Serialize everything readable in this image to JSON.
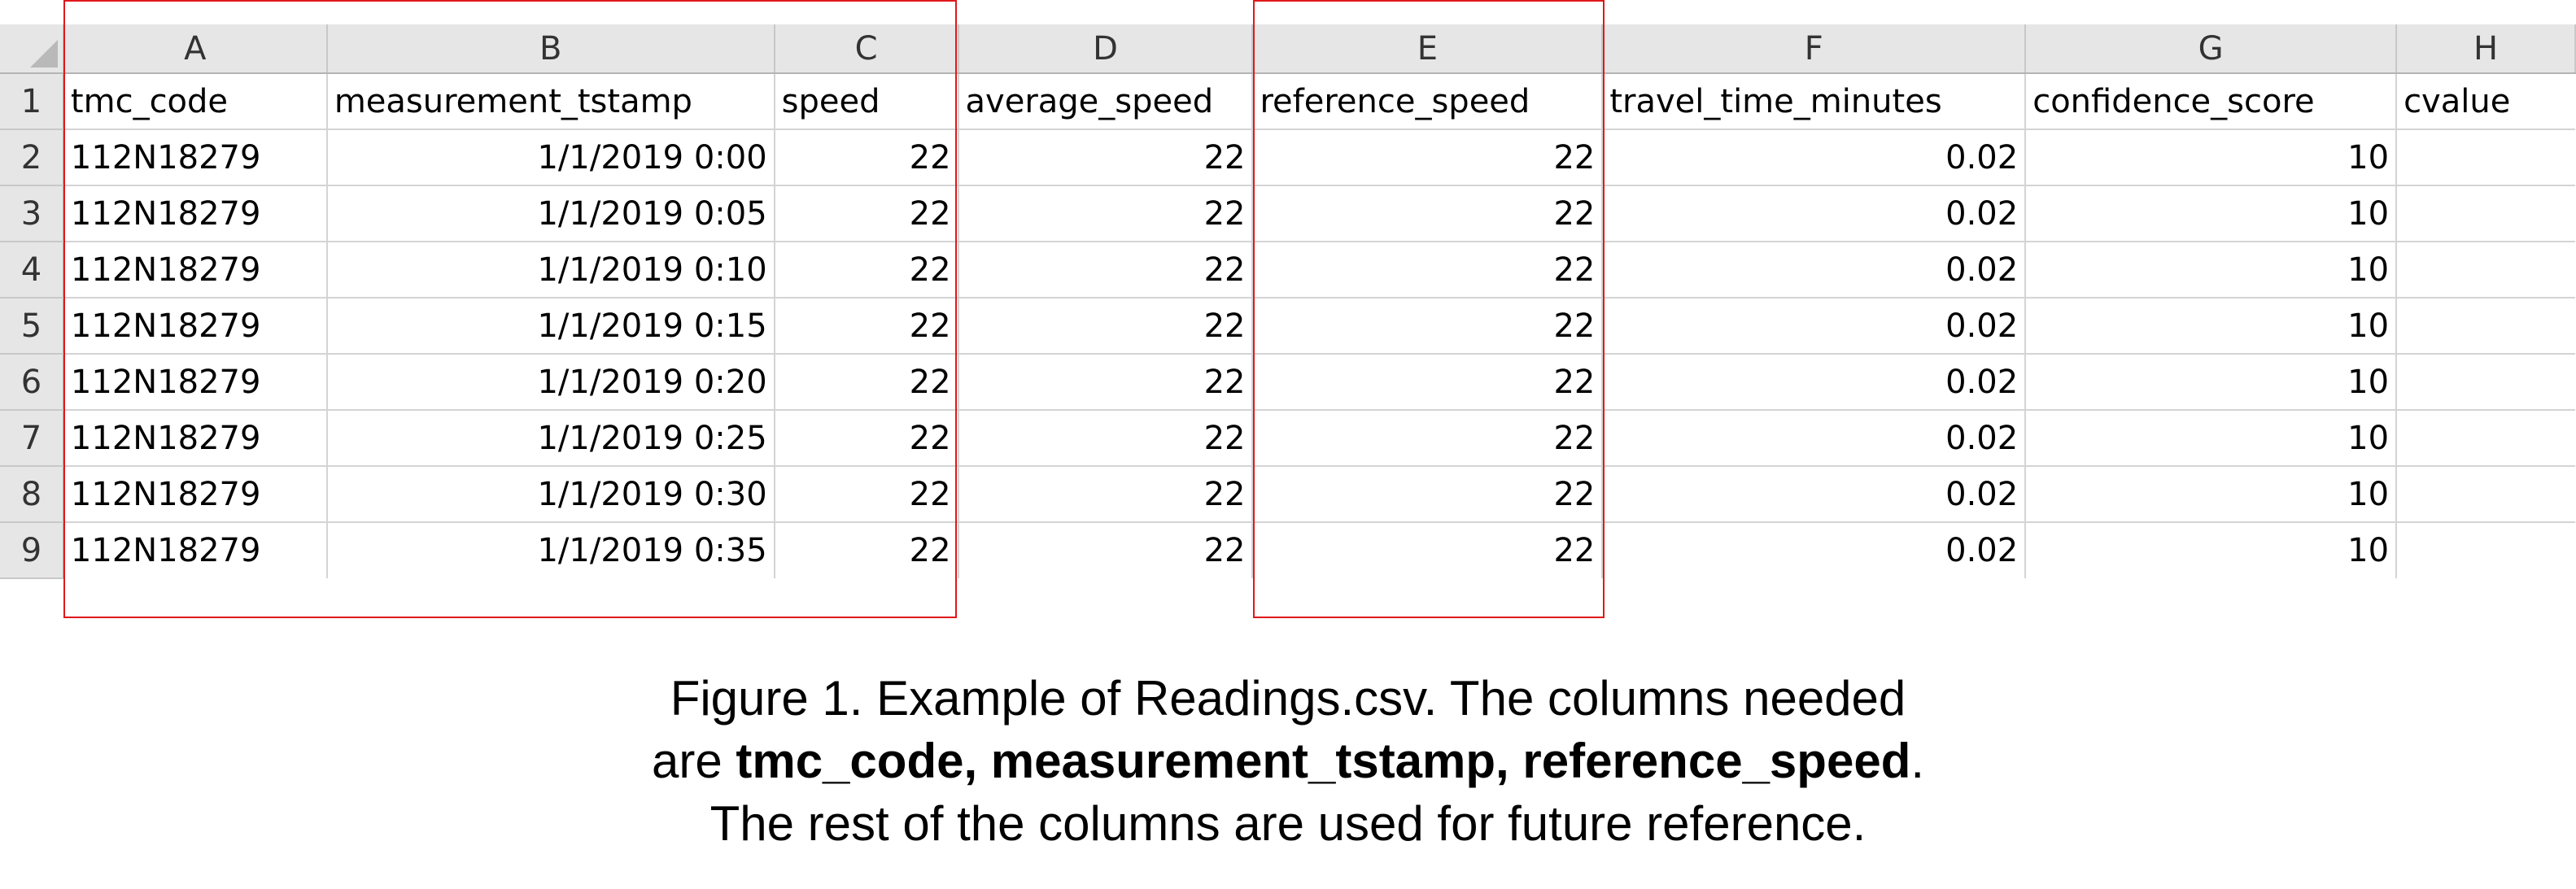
{
  "sheet": {
    "column_letters": [
      "A",
      "B",
      "C",
      "D",
      "E",
      "F",
      "G",
      "H"
    ],
    "header_row": {
      "row_number": "1",
      "cells": [
        "tmc_code",
        "measurement_tstamp",
        "speed",
        "average_speed",
        "reference_speed",
        "travel_time_minutes",
        "confidence_score",
        "cvalue"
      ]
    },
    "rows": [
      {
        "row_number": "2",
        "cells": [
          "112N18279",
          "1/1/2019 0:00",
          "22",
          "22",
          "22",
          "0.02",
          "10",
          ""
        ]
      },
      {
        "row_number": "3",
        "cells": [
          "112N18279",
          "1/1/2019 0:05",
          "22",
          "22",
          "22",
          "0.02",
          "10",
          ""
        ]
      },
      {
        "row_number": "4",
        "cells": [
          "112N18279",
          "1/1/2019 0:10",
          "22",
          "22",
          "22",
          "0.02",
          "10",
          ""
        ]
      },
      {
        "row_number": "5",
        "cells": [
          "112N18279",
          "1/1/2019 0:15",
          "22",
          "22",
          "22",
          "0.02",
          "10",
          ""
        ]
      },
      {
        "row_number": "6",
        "cells": [
          "112N18279",
          "1/1/2019 0:20",
          "22",
          "22",
          "22",
          "0.02",
          "10",
          ""
        ]
      },
      {
        "row_number": "7",
        "cells": [
          "112N18279",
          "1/1/2019 0:25",
          "22",
          "22",
          "22",
          "0.02",
          "10",
          ""
        ]
      },
      {
        "row_number": "8",
        "cells": [
          "112N18279",
          "1/1/2019 0:30",
          "22",
          "22",
          "22",
          "0.02",
          "10",
          ""
        ]
      },
      {
        "row_number": "9",
        "cells": [
          "112N18279",
          "1/1/2019 0:35",
          "22",
          "22",
          "22",
          "0.02",
          "10",
          ""
        ]
      }
    ],
    "highlight_color": "#e0181b"
  },
  "caption": {
    "line1": "Figure 1. Example of Readings.csv. The columns needed",
    "line2_prefix": "are ",
    "line2_bold": "tmc_code, measurement_tstamp, reference_speed",
    "line2_suffix": ".",
    "line3": "The rest of the columns are used for future reference."
  }
}
